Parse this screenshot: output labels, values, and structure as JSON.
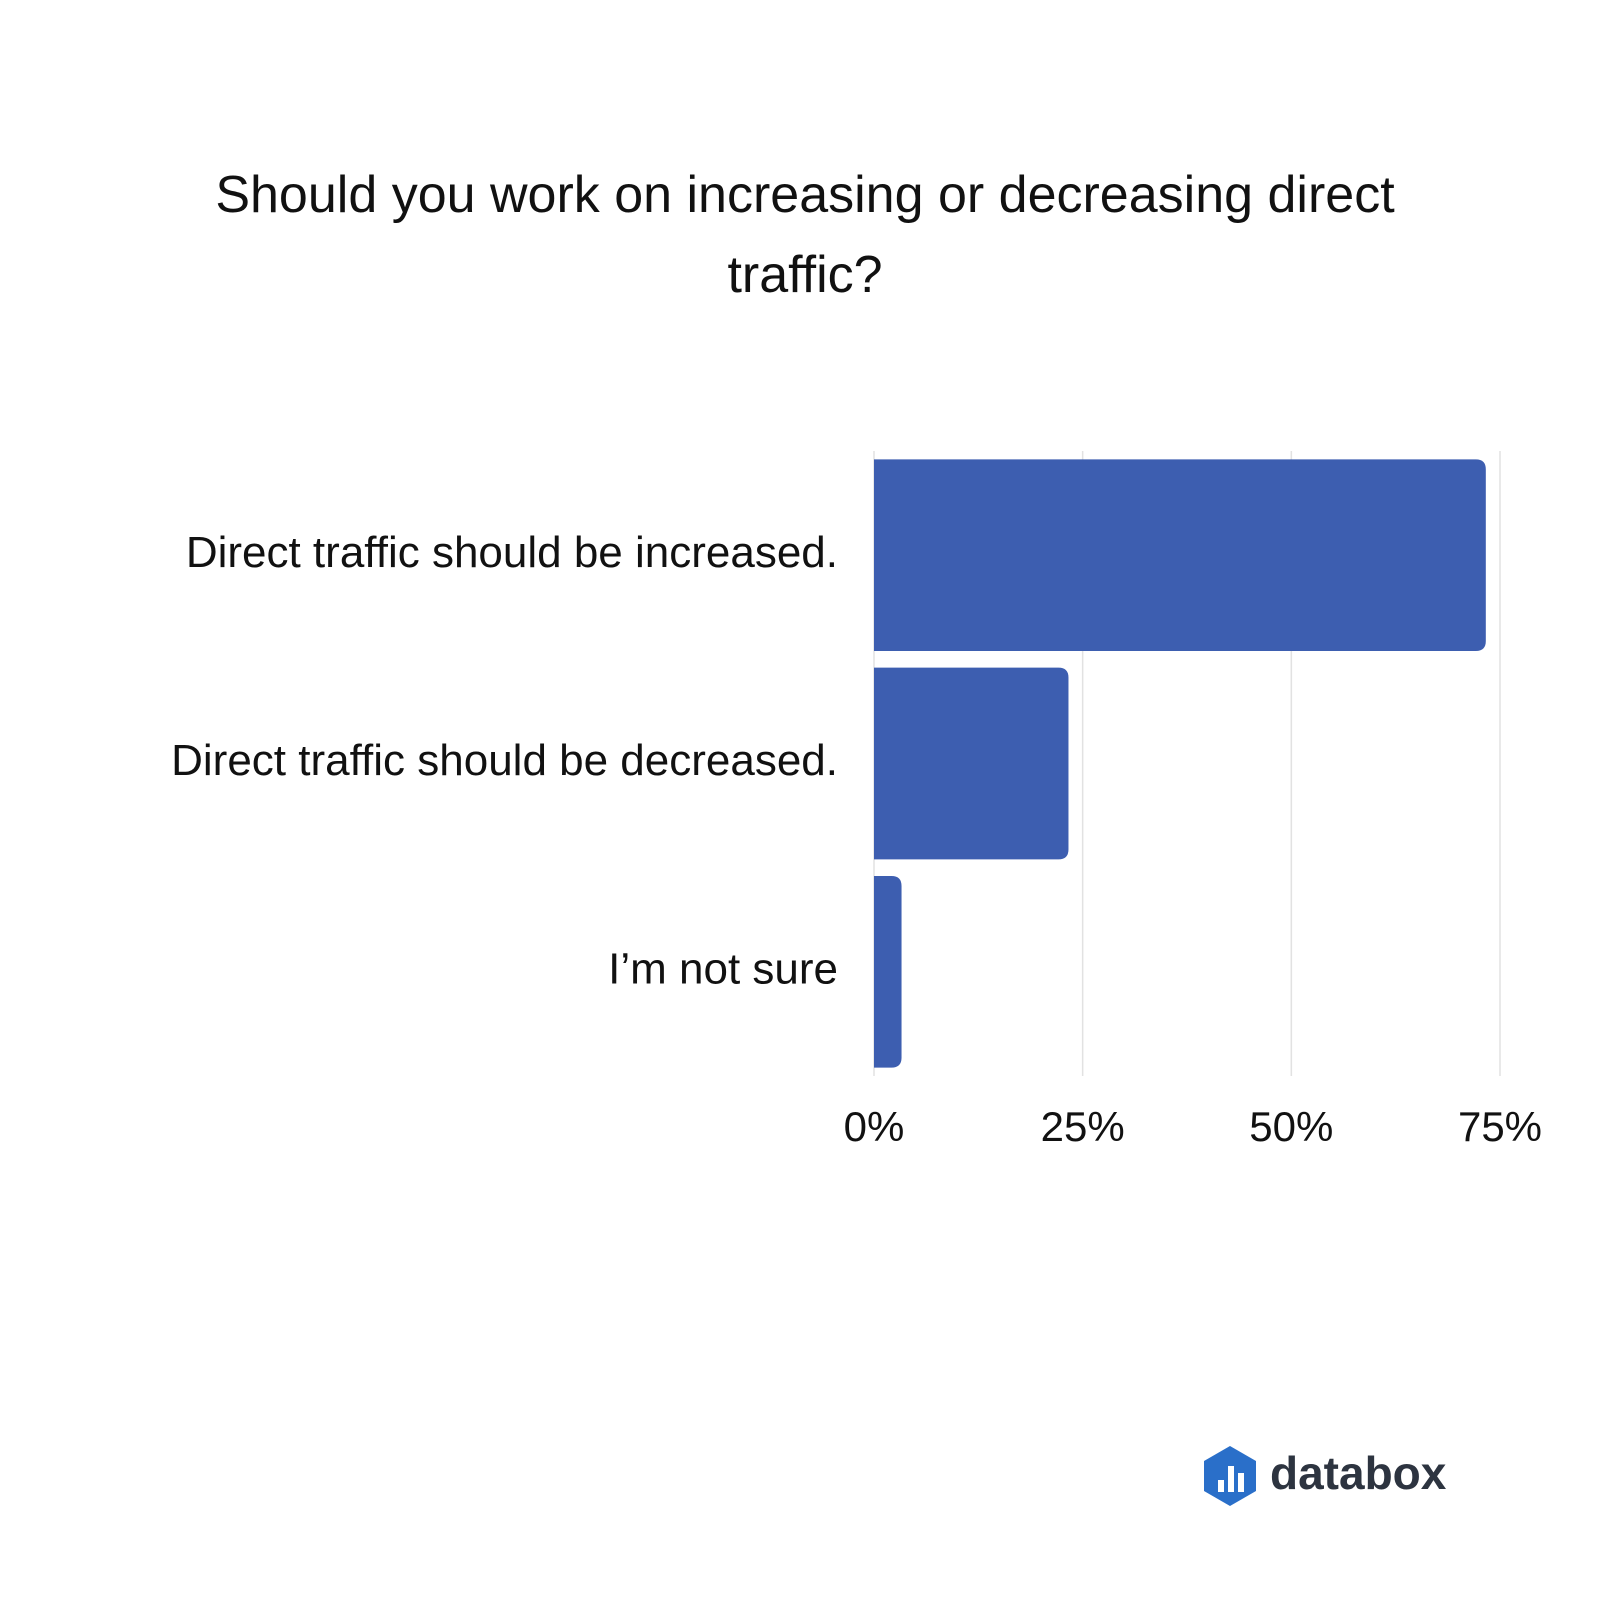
{
  "chart_data": {
    "type": "hbar",
    "title": "Should you work on increasing or decreasing direct traffic?",
    "categories": [
      "Direct traffic should be increased.",
      "Direct traffic should be decreased.",
      "I’m not sure"
    ],
    "values": [
      73.3,
      23.3,
      3.3
    ],
    "color": "#3d5eb0",
    "xlim": [
      0,
      75
    ],
    "xticks": [
      {
        "value": 0,
        "label": "0%"
      },
      {
        "value": 25,
        "label": "25%"
      },
      {
        "value": 50,
        "label": "50%"
      },
      {
        "value": 75,
        "label": "75%"
      }
    ],
    "grid": true
  },
  "logo": {
    "text": "databox"
  }
}
